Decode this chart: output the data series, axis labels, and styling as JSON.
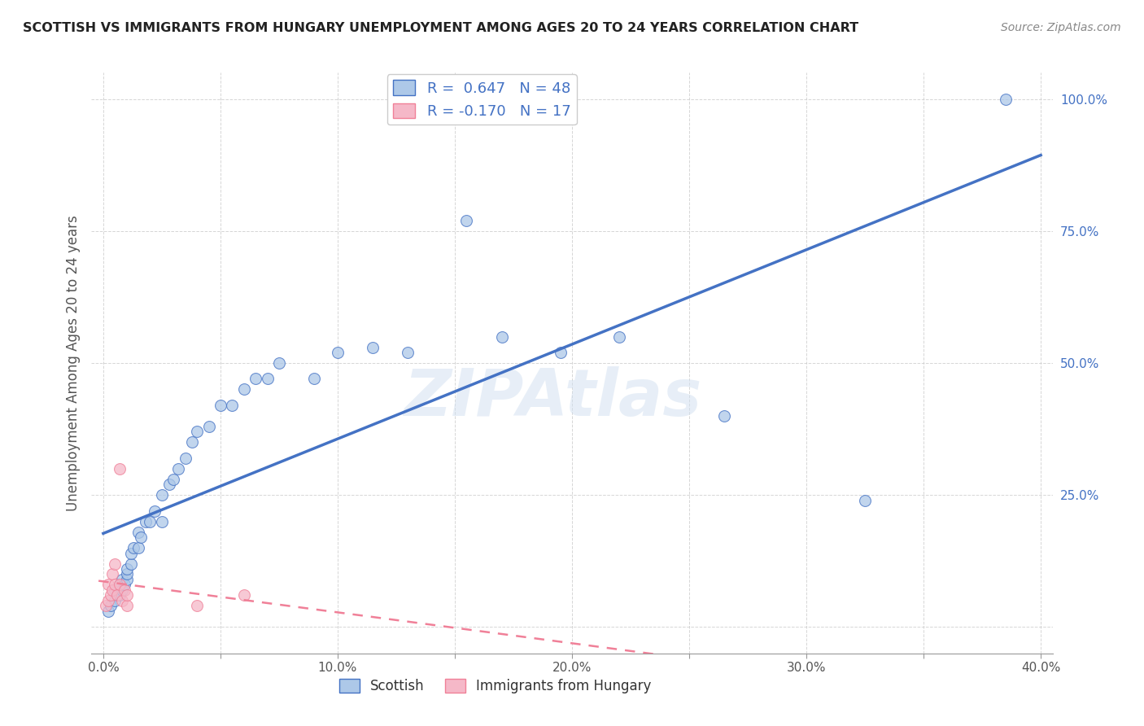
{
  "title": "SCOTTISH VS IMMIGRANTS FROM HUNGARY UNEMPLOYMENT AMONG AGES 20 TO 24 YEARS CORRELATION CHART",
  "source": "Source: ZipAtlas.com",
  "ylabel": "Unemployment Among Ages 20 to 24 years",
  "xlim": [
    -0.005,
    0.405
  ],
  "ylim": [
    -0.05,
    1.05
  ],
  "xticks": [
    0.0,
    0.05,
    0.1,
    0.15,
    0.2,
    0.25,
    0.3,
    0.35,
    0.4
  ],
  "xticklabels": [
    "0.0%",
    "",
    "10.0%",
    "",
    "20.0%",
    "",
    "30.0%",
    "",
    "40.0%"
  ],
  "yticks": [
    0.0,
    0.25,
    0.5,
    0.75,
    1.0
  ],
  "yticklabels": [
    "",
    "25.0%",
    "50.0%",
    "75.0%",
    "100.0%"
  ],
  "scottish_R": 0.647,
  "scottish_N": 48,
  "hungary_R": -0.17,
  "hungary_N": 17,
  "scottish_color": "#adc8e8",
  "hungary_color": "#f5b8c8",
  "scottish_line_color": "#4472c4",
  "hungary_line_color": "#f08098",
  "watermark": "ZIPAtlas",
  "legend_labels": [
    "Scottish",
    "Immigrants from Hungary"
  ],
  "scottish_x": [
    0.002,
    0.003,
    0.005,
    0.005,
    0.006,
    0.007,
    0.007,
    0.008,
    0.008,
    0.009,
    0.01,
    0.01,
    0.01,
    0.012,
    0.012,
    0.013,
    0.015,
    0.015,
    0.016,
    0.018,
    0.02,
    0.022,
    0.025,
    0.025,
    0.028,
    0.03,
    0.032,
    0.035,
    0.038,
    0.04,
    0.045,
    0.05,
    0.055,
    0.06,
    0.065,
    0.07,
    0.075,
    0.09,
    0.1,
    0.115,
    0.13,
    0.155,
    0.17,
    0.195,
    0.22,
    0.265,
    0.325,
    0.385
  ],
  "scottish_y": [
    0.03,
    0.04,
    0.05,
    0.07,
    0.06,
    0.06,
    0.08,
    0.07,
    0.09,
    0.08,
    0.09,
    0.1,
    0.11,
    0.12,
    0.14,
    0.15,
    0.15,
    0.18,
    0.17,
    0.2,
    0.2,
    0.22,
    0.2,
    0.25,
    0.27,
    0.28,
    0.3,
    0.32,
    0.35,
    0.37,
    0.38,
    0.42,
    0.42,
    0.45,
    0.47,
    0.47,
    0.5,
    0.47,
    0.52,
    0.53,
    0.52,
    0.77,
    0.55,
    0.52,
    0.55,
    0.4,
    0.24,
    1.0
  ],
  "hungary_x": [
    0.001,
    0.002,
    0.002,
    0.003,
    0.004,
    0.004,
    0.005,
    0.005,
    0.006,
    0.007,
    0.007,
    0.008,
    0.009,
    0.01,
    0.01,
    0.04,
    0.06
  ],
  "hungary_y": [
    0.04,
    0.05,
    0.08,
    0.06,
    0.07,
    0.1,
    0.08,
    0.12,
    0.06,
    0.08,
    0.3,
    0.05,
    0.07,
    0.04,
    0.06,
    0.04,
    0.06
  ]
}
